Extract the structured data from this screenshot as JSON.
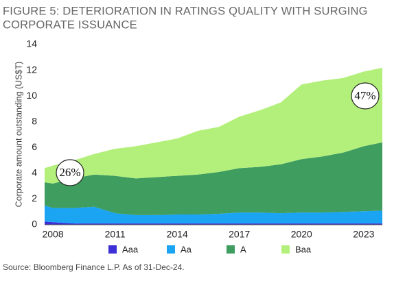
{
  "chart_data": {
    "type": "stacked-area",
    "title": [
      "FIGURE 5: DETERIORATION IN RATINGS QUALITY WITH SURGING",
      "CORPORATE ISSUANCE"
    ],
    "y_label": "Corporate amount outstanding (US$T)",
    "x": [
      2007.6,
      2008,
      2009,
      2010,
      2011,
      2012,
      2013,
      2014,
      2015,
      2016,
      2017,
      2018,
      2019,
      2020,
      2021,
      2022,
      2023,
      2023.9
    ],
    "xlim": [
      2007.6,
      2023.9
    ],
    "xticks": [
      2008,
      2011,
      2014,
      2017,
      2020,
      2023
    ],
    "ylim": [
      0,
      14
    ],
    "yticks": [
      0,
      2,
      4,
      6,
      8,
      10,
      12,
      14
    ],
    "grid": false,
    "legend": "bottom",
    "series": [
      {
        "name": "Aaa",
        "color": "#3d2fd6",
        "values": [
          0.25,
          0.2,
          0.1,
          0.1,
          0.1,
          0.1,
          0.1,
          0.1,
          0.1,
          0.1,
          0.1,
          0.1,
          0.1,
          0.1,
          0.1,
          0.1,
          0.1,
          0.1
        ]
      },
      {
        "name": "Aa",
        "color": "#1ba4f2",
        "values": [
          1.25,
          1.1,
          1.2,
          1.3,
          0.8,
          0.65,
          0.65,
          0.7,
          0.7,
          0.75,
          0.85,
          0.85,
          0.8,
          0.85,
          0.85,
          0.9,
          0.95,
          1.0
        ]
      },
      {
        "name": "A",
        "color": "#3f9d5f",
        "values": [
          1.8,
          1.9,
          2.3,
          2.5,
          2.9,
          2.85,
          2.95,
          3.0,
          3.1,
          3.25,
          3.45,
          3.55,
          3.8,
          4.15,
          4.35,
          4.6,
          5.05,
          5.3
        ]
      },
      {
        "name": "Baa",
        "color": "#b3f07b",
        "values": [
          1.1,
          1.4,
          1.4,
          1.6,
          2.1,
          2.5,
          2.7,
          2.9,
          3.4,
          3.5,
          4.0,
          4.4,
          4.8,
          5.8,
          5.9,
          5.8,
          5.8,
          5.8
        ]
      }
    ],
    "annotations": [
      "26%",
      "47%"
    ]
  },
  "source": "Source: Bloomberg Finance L.P. As of 31-Dec-24."
}
